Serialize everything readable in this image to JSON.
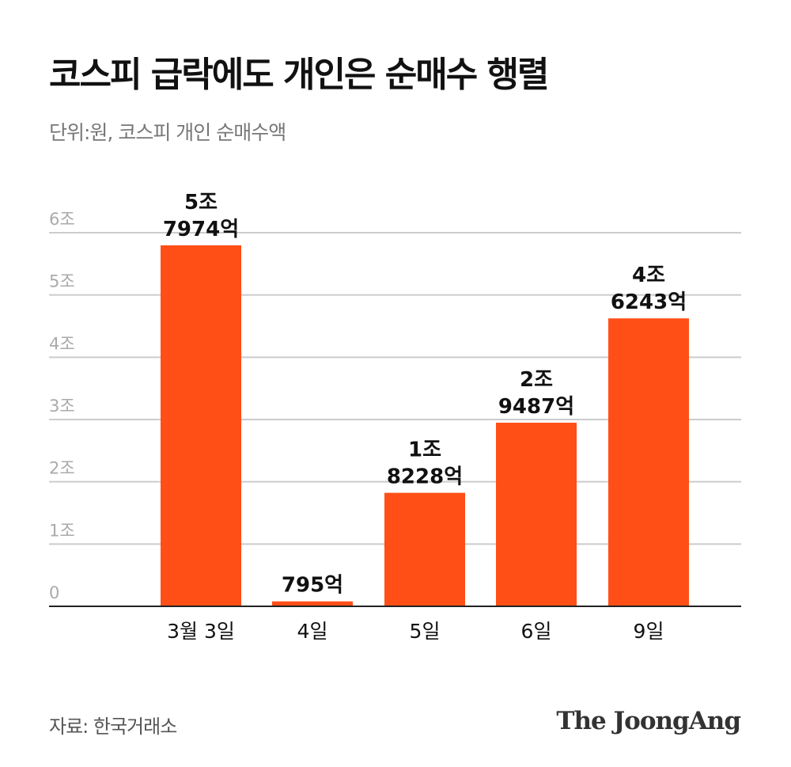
{
  "title": "코스피 급락에도 개인은 순매수 행렬",
  "subtitle": "단위:원, 코스피 개인 순매수액",
  "source": "자료: 한국거래소",
  "logo": "The JoongAng",
  "colors": {
    "bar": "#FF4F17",
    "grid": "#cccccc",
    "axis": "#222222"
  },
  "chart_data": {
    "type": "bar",
    "title": "코스피 급락에도 개인은 순매수 행렬",
    "unit": "억원",
    "categories": [
      "3월 3일",
      "4일",
      "5일",
      "6일",
      "9일"
    ],
    "values": [
      57974,
      795,
      18228,
      29487,
      46243
    ],
    "data_labels": [
      [
        "5조",
        "7974억"
      ],
      [
        "795억"
      ],
      [
        "1조",
        "8228억"
      ],
      [
        "2조",
        "9487억"
      ],
      [
        "4조",
        "6243억"
      ]
    ],
    "ylim": [
      0,
      60000
    ],
    "yticks": [
      0,
      10000,
      20000,
      30000,
      40000,
      50000,
      60000
    ],
    "ytick_labels": [
      "0",
      "1조",
      "2조",
      "3조",
      "4조",
      "5조",
      "6조"
    ],
    "grid": true
  }
}
